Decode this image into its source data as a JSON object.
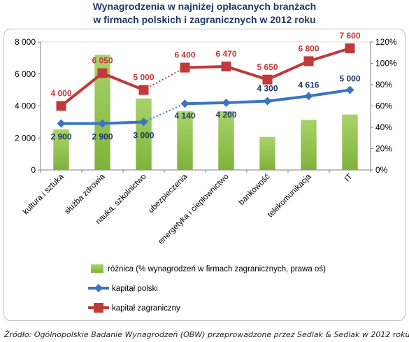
{
  "title_line1": "Wynagrodzenia w najniżej opłacanych branżach",
  "title_line2": "w firmach polskich i zagranicznych w 2012 roku",
  "source": "Źródło: Ogólnopolskie Badanie Wynagrodzeń (OBW) przeprowadzone przez Sedlak & Sedlak w 2012 roku",
  "chart_data": {
    "type": "bar",
    "categories": [
      "kultura i sztuka",
      "służba zdrowia",
      "nauka, szkolnictwo",
      "ubezpieczenia",
      "energetyka i ciepłownictwo",
      "bankowość",
      "telekomunikacja",
      "IT"
    ],
    "ylim": [
      0,
      8000
    ],
    "y_ticks": [
      "0",
      "2 000",
      "4 000",
      "6 000",
      "8 000"
    ],
    "y2lim": [
      0,
      1.2
    ],
    "y2_ticks": [
      "0%",
      "20%",
      "40%",
      "60%",
      "80%",
      "100%",
      "120%"
    ],
    "bar_series": {
      "name": "różnica (% wynagrodzeń w firmach zagranicznych, prawa oś)",
      "axis": "right",
      "color": "#7fb33a",
      "values": [
        0.38,
        1.08,
        0.67,
        0.55,
        0.55,
        0.31,
        0.47,
        0.52
      ]
    },
    "series": [
      {
        "name": "kapitał polski",
        "color": "#3a74c4",
        "label_color": "#1f3864",
        "values": [
          2900,
          2900,
          3000,
          4140,
          4200,
          4300,
          4616,
          5000
        ],
        "labels": [
          "2 900",
          "2 900",
          "3 000",
          "4 140",
          "4 200",
          "4 300",
          "4 616",
          "5 000"
        ]
      },
      {
        "name": "kapitał zagraniczny",
        "color": "#c0393b",
        "label_color": "#c0393b",
        "values": [
          4000,
          6050,
          5000,
          6400,
          6470,
          5650,
          6800,
          7600
        ],
        "labels": [
          "4 000",
          "6 050",
          "5 000",
          "6 400",
          "6 470",
          "5 650",
          "6 800",
          "7 600"
        ]
      }
    ],
    "dotted_segment": "between nauka, szkolnictwo and ubezpieczenia",
    "legend_position": "bottom"
  }
}
